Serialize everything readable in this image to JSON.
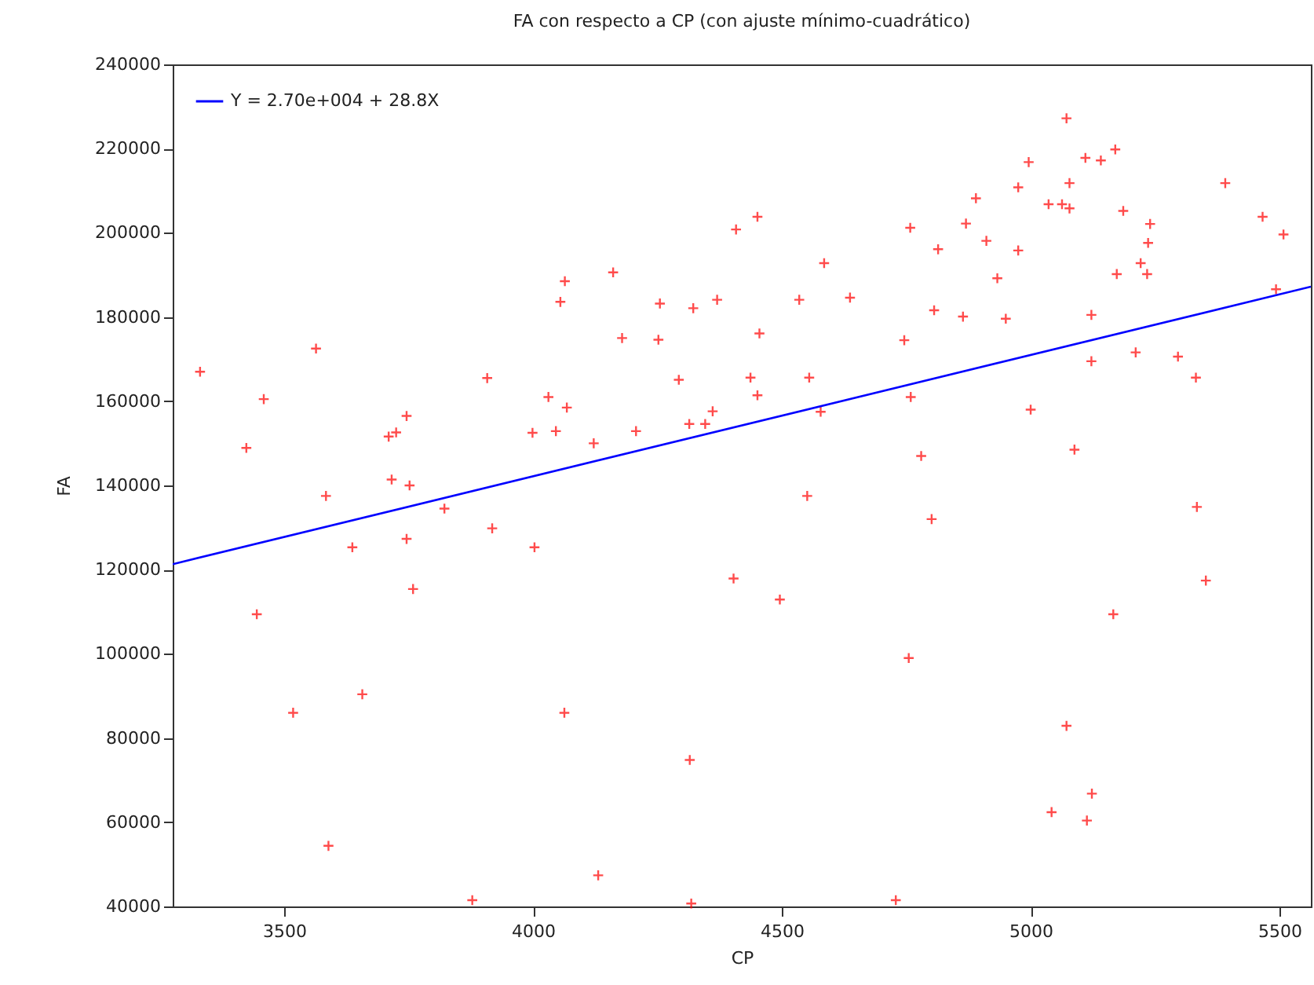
{
  "chart_data": {
    "type": "scatter",
    "title": "FA con respecto a CP (con ajuste mínimo-cuadrático)",
    "xlabel": "CP",
    "ylabel": "FA",
    "xlim": [
      3276,
      5563
    ],
    "ylim": [
      40000,
      240000
    ],
    "xticks": [
      3500,
      4000,
      4500,
      5000,
      5500
    ],
    "yticks": [
      40000,
      60000,
      80000,
      100000,
      120000,
      140000,
      160000,
      180000,
      200000,
      220000,
      240000
    ],
    "legend": "top left",
    "series": [
      {
        "color": "#ff0000",
        "marker": "cross",
        "x": [
          3331,
          3424,
          3459,
          3564,
          3584,
          3710,
          3725,
          3746,
          3716,
          3752,
          3822,
          3908,
          3999,
          4031,
          4046,
          4055,
          4064,
          4068,
          4122,
          4161,
          4179,
          4207,
          4255,
          4252,
          4322,
          4370,
          4293,
          4314,
          4346,
          4361,
          4408,
          4451,
          4437,
          4455,
          4451,
          4535,
          4555,
          4578,
          4585,
          4637,
          4551,
          4746,
          4758,
          4759,
          4780,
          4801,
          4806,
          4814,
          4864,
          4870,
          4890,
          4911,
          4933,
          4950,
          4975,
          4975,
          4996,
          5000,
          5036,
          5063,
          5072,
          5078,
          5078,
          5110,
          5141,
          5170,
          5186,
          5173,
          5122,
          5122,
          5088,
          5211,
          5221,
          5234,
          5236,
          5240,
          5296,
          5332,
          5391,
          5466,
          5508,
          5493,
          5334,
          3445,
          3637,
          3746,
          3759,
          3918,
          4003,
          3518,
          3657,
          4063,
          3589,
          3878,
          4131,
          4403,
          4496,
          5166,
          5352,
          4755,
          5072,
          5123,
          5042,
          5113,
          4315,
          4318,
          4729
        ],
        "values": [
          167000,
          148900,
          160500,
          172500,
          137500,
          151600,
          152600,
          156500,
          141400,
          140000,
          134500,
          165500,
          152500,
          161000,
          152900,
          183600,
          188500,
          158500,
          150000,
          190600,
          175000,
          152900,
          183200,
          174600,
          182100,
          184100,
          165100,
          154600,
          154600,
          157600,
          200800,
          203800,
          165600,
          176100,
          161400,
          184100,
          165600,
          157500,
          192800,
          184600,
          137500,
          174500,
          201200,
          161000,
          147000,
          132000,
          181600,
          196100,
          180100,
          202200,
          208200,
          198100,
          189200,
          179600,
          210800,
          195800,
          216800,
          158000,
          206800,
          206800,
          227200,
          211800,
          205800,
          217800,
          217200,
          219800,
          205200,
          190200,
          180500,
          169500,
          148500,
          171600,
          192800,
          190200,
          197600,
          202100,
          170600,
          165600,
          211800,
          203800,
          199600,
          186600,
          134900,
          109400,
          125300,
          127300,
          115400,
          129800,
          125300,
          86000,
          90400,
          86000,
          54400,
          41500,
          47400,
          117900,
          112900,
          109400,
          117400,
          99000,
          82900,
          66800,
          62400,
          60400,
          74800,
          40700,
          41500
        ]
      },
      {
        "type": "line",
        "name": "Y = 2.70e+004 + 28.8X",
        "color": "#0000ff",
        "x": [
          3276,
          5563
        ],
        "values": [
          121300,
          187200
        ]
      }
    ]
  }
}
